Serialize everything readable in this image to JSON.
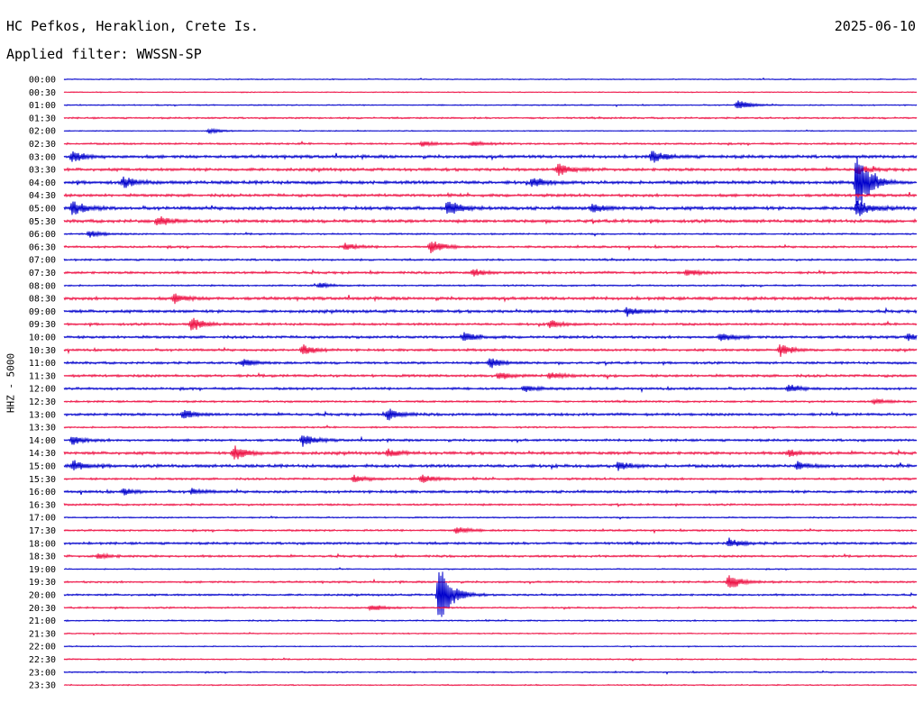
{
  "header": {
    "station": "HC Pefkos, Heraklion, Crete Is.",
    "date": "2025-06-10",
    "filter": "Applied filter: WWSSN-SP",
    "channel_label": "HHZ - 5000"
  },
  "colors": {
    "even": "#0000cc",
    "odd": "#ee1144"
  },
  "chart_data": {
    "type": "line",
    "title": "HC Pefkos, Heraklion, Crete Is.",
    "ylabel": "HHZ - 5000",
    "row_labels": [
      "00:00",
      "00:30",
      "01:00",
      "01:30",
      "02:00",
      "02:30",
      "03:00",
      "03:30",
      "04:00",
      "04:30",
      "05:00",
      "05:30",
      "06:00",
      "06:30",
      "07:00",
      "07:30",
      "08:00",
      "08:30",
      "09:00",
      "09:30",
      "10:00",
      "10:30",
      "11:00",
      "11:30",
      "12:00",
      "12:30",
      "13:00",
      "13:30",
      "14:00",
      "14:30",
      "15:00",
      "15:30",
      "16:00",
      "16:30",
      "17:00",
      "17:30",
      "18:00",
      "18:30",
      "19:00",
      "19:30",
      "20:00",
      "20:30",
      "21:00",
      "21:30",
      "22:00",
      "22:30",
      "23:00",
      "23:30"
    ],
    "noise": [
      0.4,
      0.4,
      0.5,
      0.7,
      0.4,
      0.8,
      1.3,
      1.2,
      1.4,
      1.2,
      1.4,
      1.3,
      0.7,
      0.9,
      0.8,
      1.0,
      0.7,
      1.3,
      1.2,
      1.0,
      1.1,
      1.0,
      1.0,
      1.1,
      1.0,
      0.8,
      1.1,
      0.7,
      1.0,
      1.2,
      1.3,
      0.9,
      1.1,
      0.8,
      0.6,
      0.8,
      1.0,
      0.9,
      0.5,
      0.8,
      0.8,
      0.7,
      0.6,
      0.5,
      0.4,
      0.6,
      0.6,
      0.5
    ],
    "events": [
      {
        "row": 2,
        "t": 0.79,
        "a": 6
      },
      {
        "row": 4,
        "t": 0.17,
        "a": 3
      },
      {
        "row": 5,
        "t": 0.42,
        "a": 3
      },
      {
        "row": 5,
        "t": 0.48,
        "a": 3
      },
      {
        "row": 6,
        "t": 0.01,
        "a": 6
      },
      {
        "row": 6,
        "t": 0.69,
        "a": 7
      },
      {
        "row": 7,
        "t": 0.58,
        "a": 7
      },
      {
        "row": 7,
        "t": 0.93,
        "a": 5
      },
      {
        "row": 8,
        "t": 0.07,
        "a": 6
      },
      {
        "row": 8,
        "t": 0.55,
        "a": 5
      },
      {
        "row": 8,
        "t": 0.93,
        "a": 40
      },
      {
        "row": 10,
        "t": 0.01,
        "a": 8
      },
      {
        "row": 10,
        "t": 0.45,
        "a": 9
      },
      {
        "row": 10,
        "t": 0.62,
        "a": 5
      },
      {
        "row": 10,
        "t": 0.93,
        "a": 10
      },
      {
        "row": 11,
        "t": 0.11,
        "a": 6
      },
      {
        "row": 12,
        "t": 0.03,
        "a": 4
      },
      {
        "row": 13,
        "t": 0.33,
        "a": 4
      },
      {
        "row": 13,
        "t": 0.43,
        "a": 8
      },
      {
        "row": 15,
        "t": 0.48,
        "a": 4
      },
      {
        "row": 15,
        "t": 0.73,
        "a": 4
      },
      {
        "row": 16,
        "t": 0.3,
        "a": 3
      },
      {
        "row": 17,
        "t": 0.13,
        "a": 5
      },
      {
        "row": 18,
        "t": 0.66,
        "a": 5
      },
      {
        "row": 19,
        "t": 0.15,
        "a": 8
      },
      {
        "row": 19,
        "t": 0.57,
        "a": 4
      },
      {
        "row": 20,
        "t": 0.47,
        "a": 5
      },
      {
        "row": 20,
        "t": 0.77,
        "a": 5
      },
      {
        "row": 20,
        "t": 0.99,
        "a": 4
      },
      {
        "row": 21,
        "t": 0.28,
        "a": 6
      },
      {
        "row": 21,
        "t": 0.84,
        "a": 7
      },
      {
        "row": 22,
        "t": 0.21,
        "a": 4
      },
      {
        "row": 22,
        "t": 0.5,
        "a": 6
      },
      {
        "row": 23,
        "t": 0.51,
        "a": 4
      },
      {
        "row": 23,
        "t": 0.57,
        "a": 4
      },
      {
        "row": 24,
        "t": 0.54,
        "a": 4
      },
      {
        "row": 24,
        "t": 0.85,
        "a": 4
      },
      {
        "row": 25,
        "t": 0.95,
        "a": 3
      },
      {
        "row": 26,
        "t": 0.14,
        "a": 5
      },
      {
        "row": 26,
        "t": 0.38,
        "a": 7
      },
      {
        "row": 28,
        "t": 0.01,
        "a": 5
      },
      {
        "row": 28,
        "t": 0.28,
        "a": 7
      },
      {
        "row": 29,
        "t": 0.2,
        "a": 9
      },
      {
        "row": 29,
        "t": 0.38,
        "a": 4
      },
      {
        "row": 29,
        "t": 0.85,
        "a": 4
      },
      {
        "row": 30,
        "t": 0.01,
        "a": 6
      },
      {
        "row": 30,
        "t": 0.65,
        "a": 5
      },
      {
        "row": 30,
        "t": 0.86,
        "a": 4
      },
      {
        "row": 31,
        "t": 0.34,
        "a": 4
      },
      {
        "row": 31,
        "t": 0.42,
        "a": 5
      },
      {
        "row": 32,
        "t": 0.07,
        "a": 3
      },
      {
        "row": 32,
        "t": 0.15,
        "a": 3
      },
      {
        "row": 35,
        "t": 0.46,
        "a": 4
      },
      {
        "row": 36,
        "t": 0.78,
        "a": 5
      },
      {
        "row": 37,
        "t": 0.04,
        "a": 3
      },
      {
        "row": 39,
        "t": 0.78,
        "a": 9
      },
      {
        "row": 40,
        "t": 0.44,
        "a": 38
      },
      {
        "row": 41,
        "t": 0.36,
        "a": 4
      }
    ]
  }
}
